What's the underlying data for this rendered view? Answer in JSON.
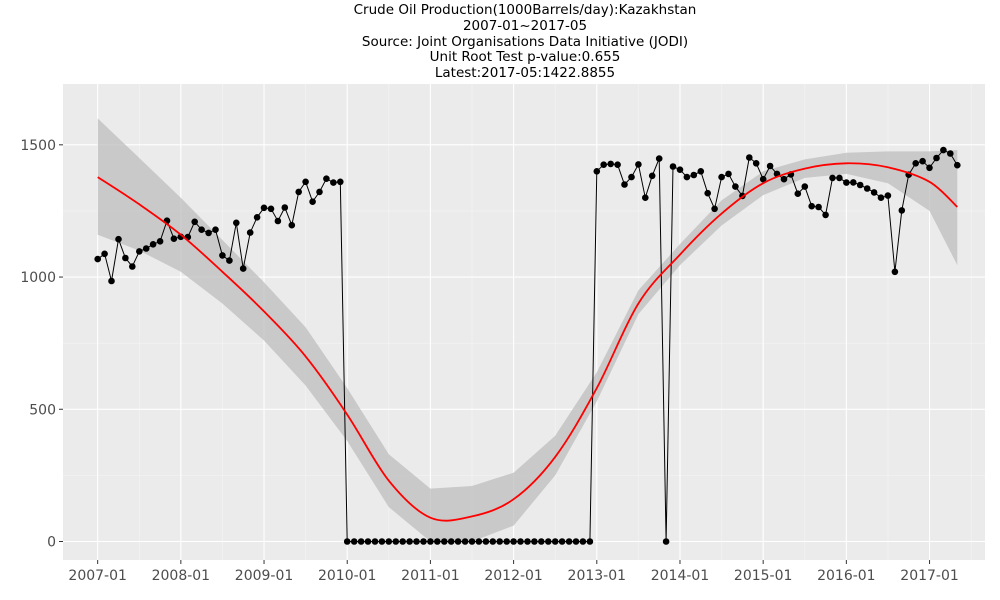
{
  "titles": {
    "line1": "Crude Oil Production(1000Barrels/day):Kazakhstan",
    "line2": "2007-01~2017-05",
    "line3": "Source: Joint Organisations Data Initiative (JODI)",
    "line4": "Unit Root Test p-value:0.655",
    "line5": "Latest:2017-05:1422.8855"
  },
  "colors": {
    "panel": "#ebebeb",
    "grid_major": "#ffffff",
    "grid_minor": "#f5f5f5",
    "points": "#000000",
    "line": "#000000",
    "smooth": "#ff0000",
    "ribbon": "#bebebe",
    "tick_text": "#4d4d4d"
  },
  "chart_data": {
    "type": "line",
    "x_axis": {
      "type": "date",
      "range": [
        "2006-08",
        "2017-09"
      ],
      "tick_labels": [
        "2007-01",
        "2008-01",
        "2009-01",
        "2010-01",
        "2011-01",
        "2012-01",
        "2013-01",
        "2014-01",
        "2015-01",
        "2016-01",
        "2017-01"
      ]
    },
    "y_axis": {
      "range": [
        -70,
        1730
      ],
      "tick_labels": [
        "0",
        "500",
        "1000",
        "1500"
      ],
      "tick_values": [
        0,
        500,
        1000,
        1500
      ]
    },
    "grid": true,
    "series": [
      {
        "style": "line+points",
        "x": [
          "2007-01",
          "2007-02",
          "2007-03",
          "2007-04",
          "2007-05",
          "2007-06",
          "2007-07",
          "2007-08",
          "2007-09",
          "2007-10",
          "2007-11",
          "2007-12",
          "2008-01",
          "2008-02",
          "2008-03",
          "2008-04",
          "2008-05",
          "2008-06",
          "2008-07",
          "2008-08",
          "2008-09",
          "2008-10",
          "2008-11",
          "2008-12",
          "2009-01",
          "2009-02",
          "2009-03",
          "2009-04",
          "2009-05",
          "2009-06",
          "2009-07",
          "2009-08",
          "2009-09",
          "2009-10",
          "2009-11",
          "2009-12",
          "2010-01",
          "2010-02",
          "2010-03",
          "2010-04",
          "2010-05",
          "2010-06",
          "2010-07",
          "2010-08",
          "2010-09",
          "2010-10",
          "2010-11",
          "2010-12",
          "2011-01",
          "2011-02",
          "2011-03",
          "2011-04",
          "2011-05",
          "2011-06",
          "2011-07",
          "2011-08",
          "2011-09",
          "2011-10",
          "2011-11",
          "2011-12",
          "2012-01",
          "2012-02",
          "2012-03",
          "2012-04",
          "2012-05",
          "2012-06",
          "2012-07",
          "2012-08",
          "2012-09",
          "2012-10",
          "2012-11",
          "2012-12",
          "2013-01",
          "2013-02",
          "2013-03",
          "2013-04",
          "2013-05",
          "2013-06",
          "2013-07",
          "2013-08",
          "2013-09",
          "2013-10",
          "2013-11",
          "2013-12",
          "2014-01",
          "2014-02",
          "2014-03",
          "2014-04",
          "2014-05",
          "2014-06",
          "2014-07",
          "2014-08",
          "2014-09",
          "2014-10",
          "2014-11",
          "2014-12",
          "2015-01",
          "2015-02",
          "2015-03",
          "2015-04",
          "2015-05",
          "2015-06",
          "2015-07",
          "2015-08",
          "2015-09",
          "2015-10",
          "2015-11",
          "2015-12",
          "2016-01",
          "2016-02",
          "2016-03",
          "2016-04",
          "2016-05",
          "2016-06",
          "2016-07",
          "2016-08",
          "2016-09",
          "2016-10",
          "2016-11",
          "2016-12",
          "2017-01",
          "2017-02",
          "2017-03",
          "2017-04",
          "2017-05"
        ],
        "y": [
          1068,
          1088,
          985,
          1143,
          1072,
          1040,
          1097,
          1108,
          1124,
          1135,
          1213,
          1145,
          1152,
          1151,
          1209,
          1179,
          1167,
          1179,
          1082,
          1062,
          1205,
          1032,
          1168,
          1226,
          1262,
          1258,
          1212,
          1263,
          1196,
          1322,
          1360,
          1285,
          1322,
          1372,
          1357,
          1360,
          0,
          0,
          0,
          0,
          0,
          0,
          0,
          0,
          0,
          0,
          0,
          0,
          0,
          0,
          0,
          0,
          0,
          0,
          0,
          0,
          0,
          0,
          0,
          0,
          0,
          0,
          0,
          0,
          0,
          0,
          0,
          0,
          0,
          0,
          0,
          0,
          1400,
          1425,
          1428,
          1425,
          1350,
          1378,
          1426,
          1300,
          1383,
          1448,
          0,
          1418,
          1406,
          1378,
          1386,
          1400,
          1317,
          1258,
          1378,
          1390,
          1342,
          1307,
          1452,
          1430,
          1370,
          1420,
          1390,
          1370,
          1388,
          1315,
          1342,
          1268,
          1265,
          1235,
          1375,
          1375,
          1357,
          1358,
          1348,
          1335,
          1320,
          1300,
          1308,
          1020,
          1252,
          1387,
          1430,
          1438,
          1413,
          1450,
          1480,
          1467,
          1423
        ]
      },
      {
        "style": "smooth",
        "x": [
          "2007-01",
          "2007-07",
          "2008-01",
          "2008-07",
          "2009-01",
          "2009-07",
          "2010-01",
          "2010-07",
          "2011-01",
          "2011-07",
          "2012-01",
          "2012-07",
          "2013-01",
          "2013-07",
          "2014-01",
          "2014-07",
          "2015-01",
          "2015-07",
          "2016-01",
          "2016-07",
          "2017-01",
          "2017-05"
        ],
        "y": [
          1378,
          1275,
          1160,
          1020,
          870,
          700,
          480,
          230,
          90,
          95,
          160,
          320,
          580,
          900,
          1085,
          1240,
          1355,
          1410,
          1430,
          1415,
          1360,
          1265
        ],
        "band_lower": [
          1160,
          1100,
          1020,
          900,
          760,
          590,
          380,
          130,
          0,
          0,
          60,
          250,
          530,
          860,
          1045,
          1195,
          1310,
          1375,
          1390,
          1355,
          1250,
          1045
        ],
        "band_upper": [
          1600,
          1450,
          1300,
          1140,
          980,
          810,
          580,
          330,
          200,
          210,
          260,
          400,
          640,
          950,
          1125,
          1290,
          1400,
          1445,
          1470,
          1475,
          1475,
          1480
        ]
      }
    ]
  }
}
